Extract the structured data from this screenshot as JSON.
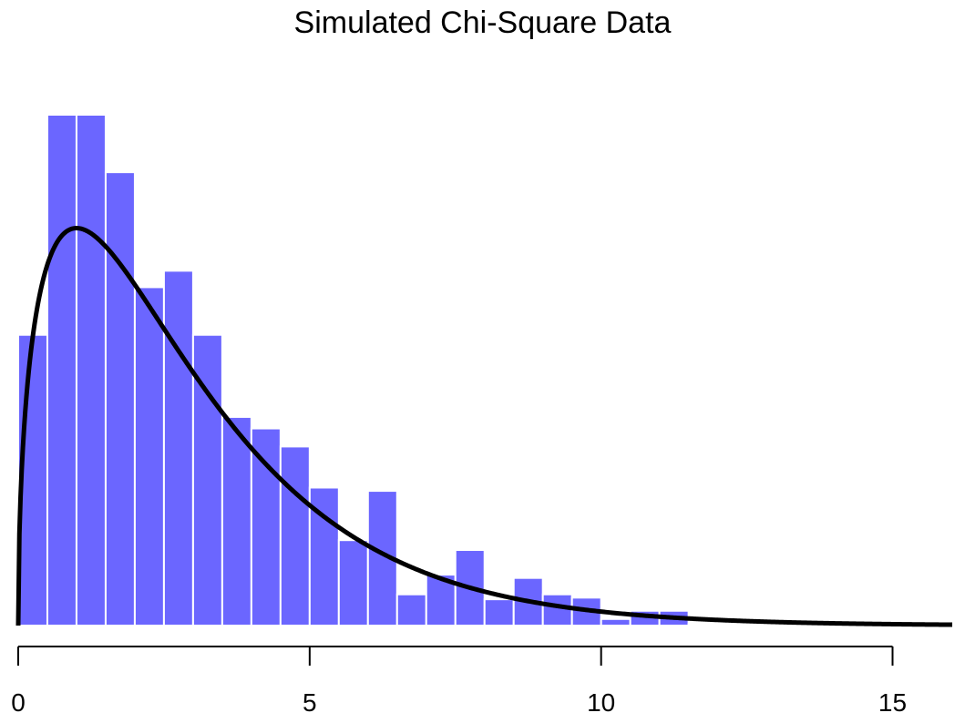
{
  "chart_data": {
    "type": "bar",
    "title": "Simulated Chi-Square Data",
    "xlabel": "",
    "ylabel": "",
    "bin_width": 0.5,
    "bin_starts": [
      0,
      0.5,
      1,
      1.5,
      2,
      2.5,
      3,
      3.5,
      4,
      4.5,
      5,
      5.5,
      6,
      6.5,
      7,
      7.5,
      8,
      8.5,
      9,
      9.5,
      10,
      10.5,
      11,
      11.5
    ],
    "density": [
      0.177,
      0.311,
      0.311,
      0.276,
      0.206,
      0.216,
      0.177,
      0.127,
      0.12,
      0.109,
      0.084,
      0.052,
      0.082,
      0.019,
      0.031,
      0.046,
      0.016,
      0.029,
      0.019,
      0.017,
      0.004,
      0.009,
      0.009,
      0.001
    ],
    "xlim": [
      0,
      16
    ],
    "ylim": [
      0,
      0.35
    ],
    "x_ticks": [
      0,
      5,
      10,
      15
    ],
    "bar_color": "#6B66FF",
    "curve": {
      "type": "line",
      "distribution": "chi-square",
      "df": 3,
      "color": "#000000"
    },
    "grid": false,
    "legend": "none"
  }
}
